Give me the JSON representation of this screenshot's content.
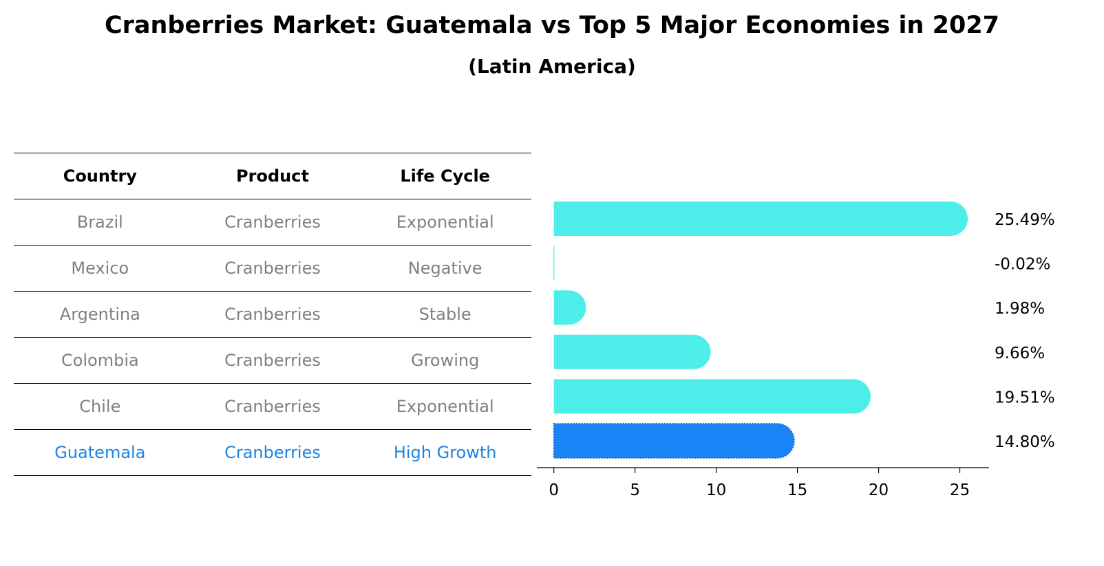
{
  "title": "Cranberries Market: Guatemala vs Top 5 Major Economies in 2027",
  "subtitle": "(Latin America)",
  "table": {
    "headers": [
      "Country",
      "Product",
      "Life Cycle"
    ],
    "rows": [
      {
        "country": "Brazil",
        "product": "Cranberries",
        "life_cycle": "Exponential"
      },
      {
        "country": "Mexico",
        "product": "Cranberries",
        "life_cycle": "Negative"
      },
      {
        "country": "Argentina",
        "product": "Cranberries",
        "life_cycle": "Stable"
      },
      {
        "country": "Colombia",
        "product": "Cranberries",
        "life_cycle": "Growing"
      },
      {
        "country": "Chile",
        "product": "Cranberries",
        "life_cycle": "Exponential"
      },
      {
        "country": "Guatemala",
        "product": "Cranberries",
        "life_cycle": "High Growth"
      }
    ]
  },
  "colors": {
    "bar": "#4dede9",
    "highlight_bar": "#1984f5",
    "highlight_text": "#1b83e2",
    "muted_text": "#808080"
  },
  "chart_data": {
    "type": "bar",
    "orientation": "horizontal",
    "categories": [
      "Brazil",
      "Mexico",
      "Argentina",
      "Colombia",
      "Chile",
      "Guatemala"
    ],
    "values": [
      25.49,
      -0.02,
      1.98,
      9.66,
      19.51,
      14.8
    ],
    "value_labels": [
      "25.49%",
      "-0.02%",
      "1.98%",
      "9.66%",
      "19.51%",
      "14.80%"
    ],
    "highlight": "Guatemala",
    "xlim": [
      -1.3,
      26.8
    ],
    "xticks": [
      0,
      5,
      10,
      15,
      20,
      25
    ],
    "xlabel": "",
    "ylabel": "",
    "grid": false,
    "legend": "none"
  }
}
